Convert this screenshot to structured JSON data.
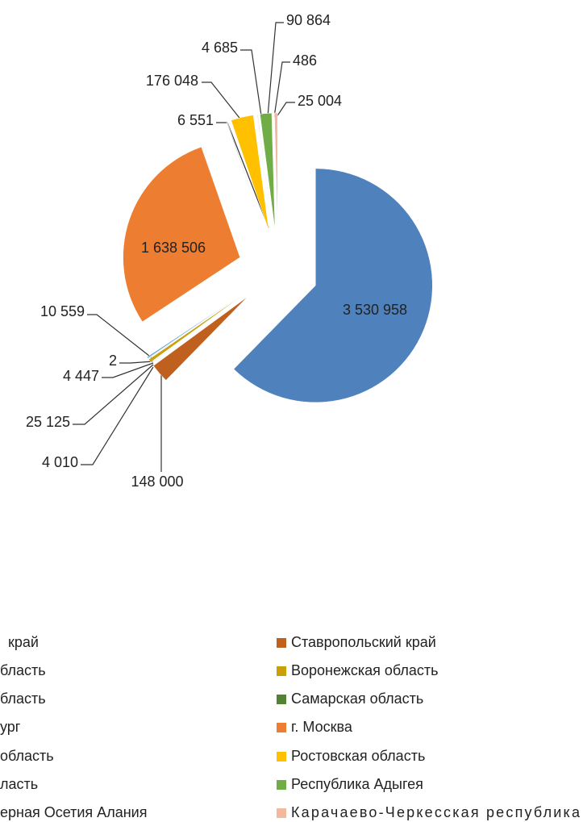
{
  "chart_data": {
    "type": "pie",
    "categories": [
      "край",
      "Ставропольский край",
      "бласть",
      "Воронежская область",
      "бласть",
      "Самарская область",
      "ург",
      "г. Москва",
      " область",
      "Ростовская область",
      "ласть",
      "Республика Адыгея",
      "ерная Осетия Алания",
      "Карачаево-Черкесская республика"
    ],
    "values": [
      3530958,
      148000,
      4010,
      25125,
      4447,
      2,
      10559,
      1638506,
      6551,
      176048,
      4685,
      90864,
      486,
      25004
    ],
    "value_labels": [
      "3 530 958",
      "148 000",
      "4 010",
      "25 125",
      "4 447",
      "2",
      "10 559",
      "1 638 506",
      "6 551",
      "176 048",
      "4 685",
      "90 864",
      "486",
      "25 004"
    ],
    "colors": [
      "#4f81bd",
      "#c0601f",
      "#9dc3e6",
      "#c9a008",
      "#8faadc",
      "#548235",
      "#5b9bd5",
      "#ed7d31",
      "#a5a5a5",
      "#ffc000",
      "#a9d18e",
      "#70ad47",
      "#264478",
      "#f4b8a0"
    ]
  }
}
